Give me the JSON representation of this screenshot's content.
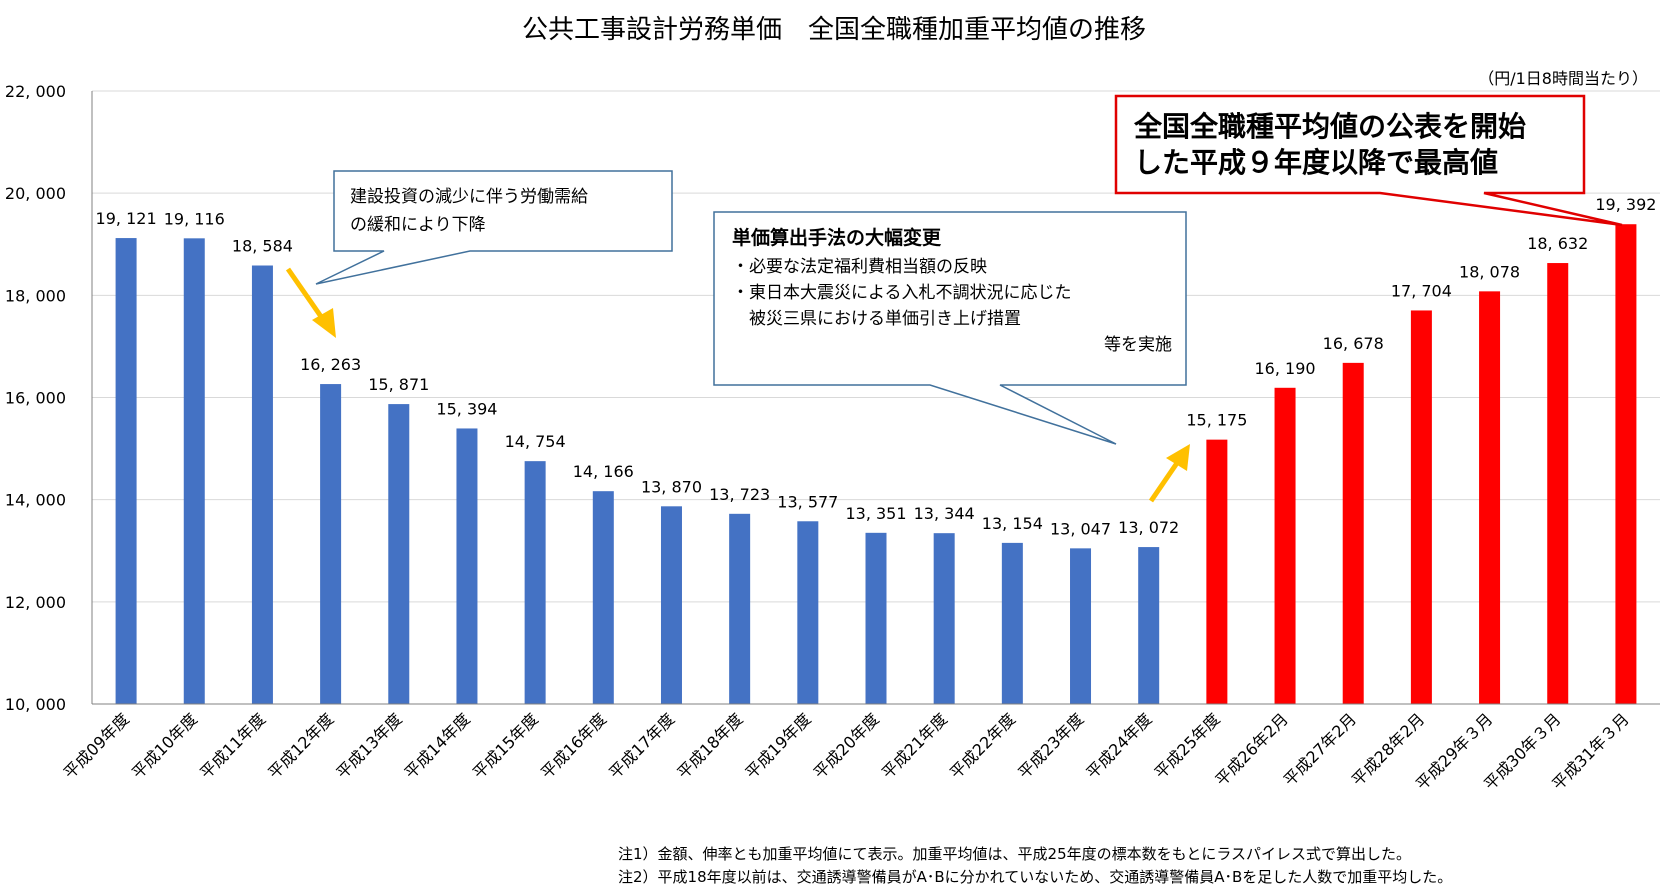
{
  "chart_data": {
    "type": "bar",
    "title": "公共工事設計労務単価　全国全職種加重平均値の推移",
    "unit_label": "（円/1日8時間当たり）",
    "ylim": [
      10000,
      22000
    ],
    "yticks": [
      10000,
      12000,
      14000,
      16000,
      18000,
      20000,
      22000
    ],
    "ytick_labels": [
      "10, 000",
      "12, 000",
      "14, 000",
      "16, 000",
      "18, 000",
      "20, 000",
      "22, 000"
    ],
    "grid": true,
    "categories": [
      "平成09年度",
      "平成10年度",
      "平成11年度",
      "平成12年度",
      "平成13年度",
      "平成14年度",
      "平成15年度",
      "平成16年度",
      "平成17年度",
      "平成18年度",
      "平成19年度",
      "平成20年度",
      "平成21年度",
      "平成22年度",
      "平成23年度",
      "平成24年度",
      "平成25年度",
      "平成26年2月",
      "平成27年2月",
      "平成28年2月",
      "平成29年３月",
      "平成30年３月",
      "平成31年３月"
    ],
    "values": [
      19121,
      19116,
      18584,
      16263,
      15871,
      15394,
      14754,
      14166,
      13870,
      13723,
      13577,
      13351,
      13344,
      13154,
      13047,
      13072,
      15175,
      16190,
      16678,
      17704,
      18078,
      18632,
      19392
    ],
    "value_labels": [
      "19, 121",
      "19, 116",
      "18, 584",
      "16, 263",
      "15, 871",
      "15, 394",
      "14, 754",
      "14, 166",
      "13, 870",
      "13, 723",
      "13, 577",
      "13, 351",
      "13, 344",
      "13, 154",
      "13, 047",
      "13, 072",
      "15, 175",
      "16, 190",
      "16, 678",
      "17, 704",
      "18, 078",
      "18, 632",
      "19, 392"
    ],
    "colors": {
      "before": "#4472c4",
      "after": "#ff0000",
      "arrow": "#ffc000",
      "callout_border": "#41719c",
      "highlight_border": "#e00000"
    },
    "color_split_index": 16,
    "annotations": {
      "decline": [
        "建設投資の減少に伴う労働需給",
        "の緩和により下降"
      ],
      "method_title": "単価算出手法の大幅変更",
      "method_items": [
        "・必要な法定福利費相当額の反映",
        "・東日本大震災による入札不調状況に応じた",
        "　被災三県における単価引き上げ措置",
        "等を実施"
      ],
      "highest": [
        "全国全職種平均値の公表を開始",
        "した平成９年度以降で最高値"
      ]
    },
    "notes": [
      "注1）金額、伸率とも加重平均値にて表示。加重平均値は、平成25年度の標本数をもとにラスパイレス式で算出した。",
      "注2）平成18年度以前は、交通誘導警備員がA･Bに分かれていないため、交通誘導警備員A･Bを足した人数で加重平均した。"
    ]
  }
}
